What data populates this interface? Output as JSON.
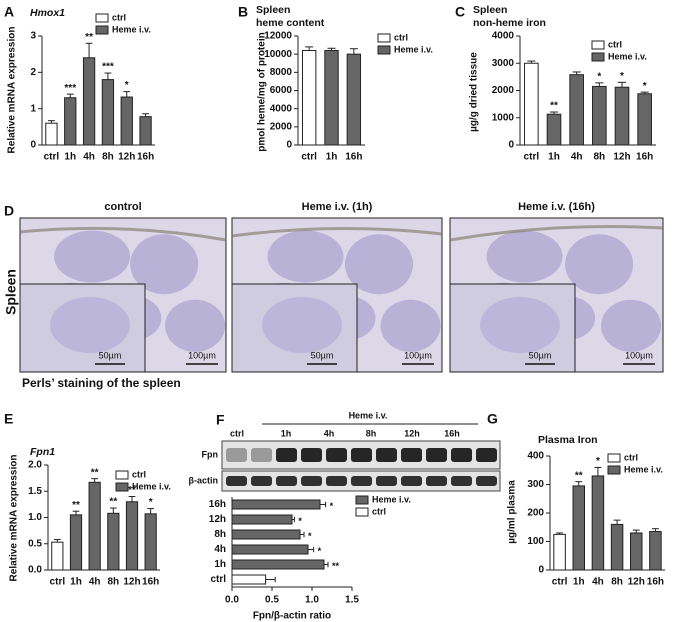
{
  "chart_data": [
    {
      "panel": "A",
      "type": "bar",
      "title": "Hmox1",
      "ylabel": "Relative mRNA expression",
      "categories": [
        "ctrl",
        "1h",
        "4h",
        "8h",
        "12h",
        "16h"
      ],
      "series": [
        {
          "name": "ctrl",
          "color": "#ffffff",
          "values": [
            0.6,
            null,
            null,
            null,
            null,
            null
          ],
          "errors": [
            0.07,
            null,
            null,
            null,
            null,
            null
          ]
        },
        {
          "name": "Heme i.v.",
          "color": "#666666",
          "values": [
            null,
            1.3,
            2.4,
            1.8,
            1.32,
            0.78
          ],
          "errors": [
            null,
            0.1,
            0.4,
            0.18,
            0.15,
            0.08
          ]
        }
      ],
      "annotations": [
        null,
        "***",
        "**",
        "***",
        "*",
        null
      ],
      "ylim": [
        0,
        3
      ],
      "yticks": [
        0,
        1,
        2,
        3
      ]
    },
    {
      "panel": "B",
      "type": "bar",
      "title": "Spleen",
      "subtitle": "heme content",
      "ylabel": "pmol heme/mg of protein",
      "categories": [
        "ctrl",
        "1h",
        "16h"
      ],
      "series": [
        {
          "name": "ctrl",
          "color": "#ffffff",
          "values": [
            10400,
            null,
            null
          ],
          "errors": [
            400,
            null,
            null
          ]
        },
        {
          "name": "Heme i.v.",
          "color": "#666666",
          "values": [
            null,
            10400,
            10000
          ],
          "errors": [
            null,
            250,
            600
          ]
        }
      ],
      "ylim": [
        0,
        12000
      ],
      "yticks": [
        0,
        2000,
        4000,
        6000,
        8000,
        10000,
        12000
      ]
    },
    {
      "panel": "C",
      "type": "bar",
      "title": "Spleen",
      "subtitle": "non-heme iron",
      "ylabel": "µg/g dried tissue",
      "categories": [
        "ctrl",
        "1h",
        "4h",
        "8h",
        "12h",
        "16h"
      ],
      "series": [
        {
          "name": "ctrl",
          "color": "#ffffff",
          "values": [
            3000,
            null,
            null,
            null,
            null,
            null
          ],
          "errors": [
            80,
            null,
            null,
            null,
            null,
            null
          ]
        },
        {
          "name": "Heme i.v.",
          "color": "#666666",
          "values": [
            null,
            1130,
            2580,
            2150,
            2120,
            1880
          ],
          "errors": [
            null,
            80,
            100,
            130,
            180,
            60
          ]
        }
      ],
      "annotations": [
        null,
        "**",
        null,
        "*",
        "*",
        "*"
      ],
      "ylim": [
        0,
        4000
      ],
      "yticks": [
        0,
        1000,
        2000,
        3000,
        4000
      ]
    },
    {
      "panel": "E",
      "type": "bar",
      "title": "Fpn1",
      "ylabel": "Relative mRNA expression",
      "categories": [
        "ctrl",
        "1h",
        "4h",
        "8h",
        "12h",
        "16h"
      ],
      "series": [
        {
          "name": "ctrl",
          "color": "#ffffff",
          "values": [
            0.53,
            null,
            null,
            null,
            null,
            null
          ],
          "errors": [
            0.05,
            null,
            null,
            null,
            null,
            null
          ]
        },
        {
          "name": "Heme i.v.",
          "color": "#666666",
          "values": [
            null,
            1.05,
            1.67,
            1.08,
            1.3,
            1.07
          ],
          "errors": [
            null,
            0.07,
            0.07,
            0.1,
            0.1,
            0.1
          ]
        }
      ],
      "annotations": [
        null,
        "**",
        "**",
        "**",
        "**",
        "*"
      ],
      "ylim": [
        0,
        2
      ],
      "yticks": [
        {
          "value": 0,
          "label": "0.0"
        },
        {
          "value": 0.5,
          "label": "0.5"
        },
        {
          "value": 1,
          "label": "1.0"
        },
        {
          "value": 1.5,
          "label": "1.5"
        },
        {
          "value": 2,
          "label": "2.0"
        }
      ]
    },
    {
      "panel": "F",
      "type": "barh",
      "xlabel": "Fpn/β-actin ratio",
      "categories": [
        "16h",
        "12h",
        "8h",
        "4h",
        "1h",
        "ctrl"
      ],
      "series": [
        {
          "name": "Heme i.v.",
          "color": "#666666",
          "values": [
            1.1,
            0.75,
            0.85,
            0.95,
            1.15,
            null
          ],
          "errors": [
            0.07,
            0.03,
            0.05,
            0.07,
            0.05,
            null
          ]
        },
        {
          "name": "ctrl",
          "color": "#ffffff",
          "values": [
            null,
            null,
            null,
            null,
            null,
            0.42
          ],
          "errors": [
            null,
            null,
            null,
            null,
            null,
            0.12
          ]
        }
      ],
      "annotations": [
        "*",
        "*",
        "*",
        "*",
        "**",
        null
      ],
      "xlim": [
        0,
        1.5
      ],
      "xticks": [
        {
          "value": 0,
          "label": "0.0"
        },
        {
          "value": 0.5,
          "label": "0.5"
        },
        {
          "value": 1,
          "label": "1.0"
        },
        {
          "value": 1.5,
          "label": "1.5"
        }
      ]
    },
    {
      "panel": "G",
      "type": "bar",
      "title": "Plasma Iron",
      "ylabel": "µg/ml plasma",
      "categories": [
        "ctrl",
        "1h",
        "4h",
        "8h",
        "12h",
        "16h"
      ],
      "series": [
        {
          "name": "ctrl",
          "color": "#ffffff",
          "values": [
            125,
            null,
            null,
            null,
            null,
            null
          ],
          "errors": [
            5,
            null,
            null,
            null,
            null,
            null
          ]
        },
        {
          "name": "Heme i.v.",
          "color": "#666666",
          "values": [
            null,
            295,
            330,
            160,
            130,
            135
          ],
          "errors": [
            null,
            15,
            30,
            15,
            10,
            10
          ]
        }
      ],
      "annotations": [
        null,
        "**",
        "*",
        null,
        null,
        null
      ],
      "ylim": [
        0,
        400
      ],
      "yticks": [
        0,
        100,
        200,
        300,
        400
      ]
    }
  ],
  "histology": {
    "panel": "D",
    "side_label": "Spleen",
    "caption": "Perls’ staining of the spleen",
    "images": [
      {
        "title": "control",
        "inset_scale": "50µm",
        "scale": "100µm"
      },
      {
        "title": "Heme i.v. (1h)",
        "inset_scale": "50µm",
        "scale": "100µm"
      },
      {
        "title": "Heme i.v. (16h)",
        "inset_scale": "50µm",
        "scale": "100µm"
      }
    ]
  },
  "blot": {
    "group_label": "Heme i.v.",
    "lanes": [
      "ctrl",
      "1h",
      "4h",
      "8h",
      "12h",
      "16h"
    ],
    "rows": [
      "Fpn",
      "β-actin"
    ]
  }
}
